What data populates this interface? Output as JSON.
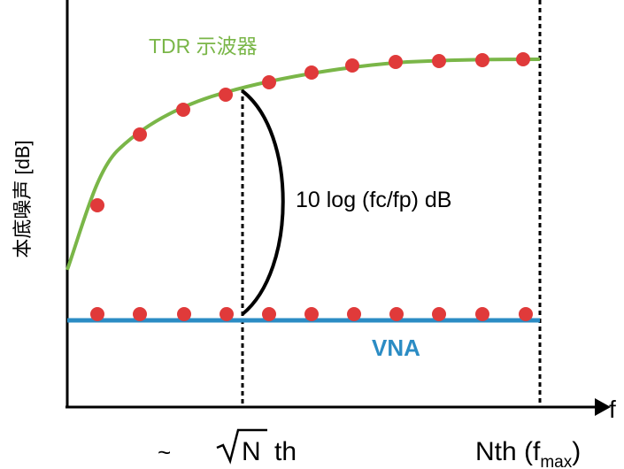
{
  "curve_label": "TDR 示波器",
  "y_axis_label": "本底噪声 [dB]",
  "gap_label": "10 log (fc/fp) dB",
  "line_label": "VNA",
  "x_axis_label": "f",
  "x_labels": {
    "tilde": "~",
    "sqrt_n": "N",
    "sqrt_suffix": "th",
    "nth": "Nth (f",
    "nth_sub": "max",
    "nth_close": ")"
  }
}
